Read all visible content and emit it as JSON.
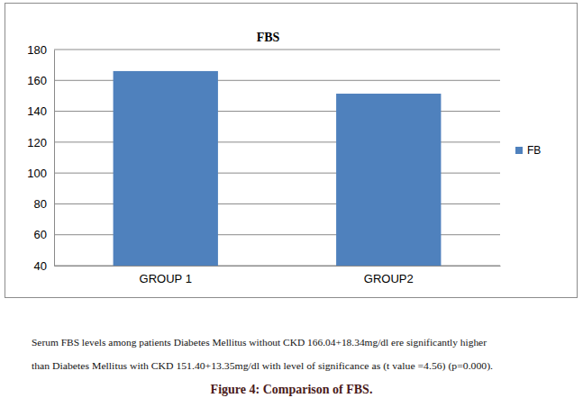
{
  "chart_data": {
    "type": "bar",
    "title": "FBS",
    "categories": [
      "GROUP 1",
      "GROUP2"
    ],
    "series": [
      {
        "name": "FB",
        "color": "#4f81bd",
        "values": [
          166.04,
          151.4
        ]
      }
    ],
    "ylim": [
      40,
      180
    ],
    "yticks": [
      40,
      60,
      80,
      100,
      120,
      140,
      160,
      180
    ],
    "grid": true,
    "legend": "right"
  },
  "caption": {
    "lines": [
      "Serum FBS levels among patients Diabetes Mellitus without CKD 166.04+18.34mg/dl ere significantly higher",
      "than Diabetes Mellitus with CKD 151.40+13.35mg/dl with level of significance as (t value =4.56) (p=0.000)."
    ],
    "figure_title": "Figure 4: Comparison of FBS."
  }
}
